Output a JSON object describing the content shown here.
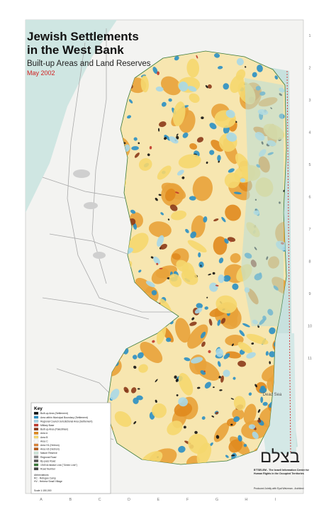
{
  "header": {
    "title_line1": "Jewish Settlements",
    "title_line2": "in the West Bank",
    "subtitle": "Built-up Areas and Land Reserves",
    "date": "May 2002"
  },
  "legend": {
    "title": "Key",
    "items": [
      {
        "label": "Built-up Area (Settlement)",
        "color": "#111111"
      },
      {
        "label": "Area within Municipal Boundary (Settlement)",
        "color": "#2a8fc4"
      },
      {
        "label": "Regional Council Jurisdictional Area (Settlement)",
        "color": "#a8d8e8"
      },
      {
        "label": "Military Base",
        "color": "#c0392b"
      },
      {
        "label": "Built-up Area (Palestinian)",
        "color": "#8b3a1a"
      },
      {
        "label": "Area A",
        "color": "#e08a1e"
      },
      {
        "label": "Area B",
        "color": "#f5d76e"
      },
      {
        "label": "Area C",
        "color": "#ffffff"
      },
      {
        "label": "Area H1 (Hebron)",
        "color": "#d9843a"
      },
      {
        "label": "Area H2 (Hebron)",
        "color": "#b85c1a"
      },
      {
        "label": "Nature Reserve",
        "color": "#cde6d8"
      },
      {
        "label": "Regional Road",
        "color": "#888888"
      },
      {
        "label": "By-pass Road",
        "color": "#555555"
      },
      {
        "label": "1949 Armistice Line (\"Green Line\")",
        "color": "#3a7a3a"
      },
      {
        "label": "Road Number",
        "color": "#444444"
      }
    ],
    "abbreviations_title": "Abbreviations",
    "abbreviations": [
      "RC - Refugee Camp",
      "HV - Hebrew Small Village"
    ],
    "scale": "Scale 1:150,000"
  },
  "places": {
    "dead_sea": "Dead Sea"
  },
  "grid": {
    "columns": [
      "A",
      "B",
      "C",
      "D",
      "E",
      "F",
      "G",
      "H",
      "I"
    ],
    "rows": [
      "1",
      "2",
      "3",
      "4",
      "5",
      "6",
      "7",
      "8",
      "9",
      "10",
      "11"
    ]
  },
  "publisher": {
    "logo": "בצלם",
    "line1": "B'TSELEM - The Israeli Information Center for",
    "line2": "Human Rights in the Occupied Territories",
    "credit": "Produced Jointly with Eyal Weizman - Architect"
  }
}
